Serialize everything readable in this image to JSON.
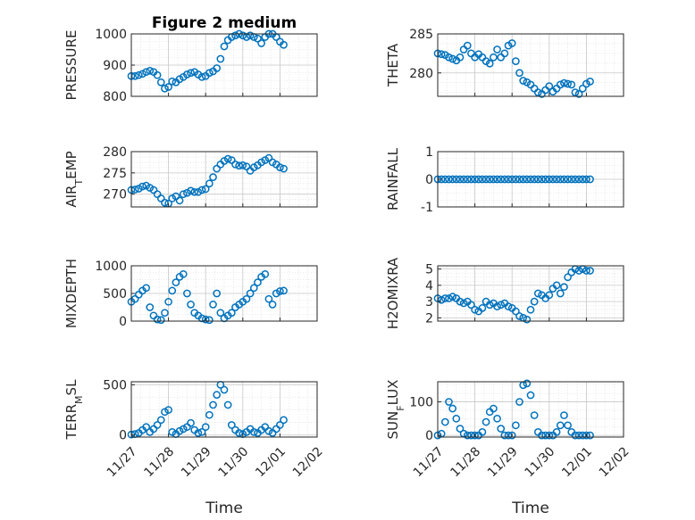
{
  "figure": {
    "title": "Figure 2 medium",
    "xlabel": "Time",
    "xticks": [
      "11/27",
      "11/28",
      "11/29",
      "11/30",
      "12/01",
      "12/02"
    ],
    "marker_color": "#0072BD"
  },
  "chart_data": [
    {
      "type": "scatter",
      "ylabel": "PRESSURE",
      "ylim": [
        800,
        1000
      ],
      "yticks": [
        "800",
        "900",
        "1000"
      ],
      "grid": true,
      "xlim": [
        0,
        5
      ],
      "x": [
        0,
        0.1,
        0.2,
        0.3,
        0.4,
        0.5,
        0.6,
        0.7,
        0.8,
        0.9,
        1.0,
        1.1,
        1.2,
        1.3,
        1.4,
        1.5,
        1.6,
        1.7,
        1.8,
        1.9,
        2.0,
        2.1,
        2.2,
        2.3,
        2.4,
        2.5,
        2.6,
        2.7,
        2.8,
        2.9,
        3.0,
        3.1,
        3.2,
        3.3,
        3.4,
        3.5,
        3.6,
        3.7,
        3.8,
        3.9,
        4.0,
        4.1
      ],
      "y": [
        865,
        865,
        868,
        872,
        878,
        882,
        878,
        868,
        845,
        825,
        830,
        848,
        845,
        855,
        862,
        870,
        875,
        878,
        870,
        862,
        865,
        875,
        880,
        890,
        920,
        960,
        980,
        990,
        995,
        1000,
        995,
        990,
        995,
        990,
        985,
        970,
        990,
        1000,
        1000,
        990,
        975,
        965
      ]
    },
    {
      "type": "scatter",
      "ylabel": "THETA",
      "ylim": [
        277,
        285
      ],
      "yticks": [
        "280",
        "285"
      ],
      "grid": true,
      "xlim": [
        0,
        5
      ],
      "x": [
        0,
        0.1,
        0.2,
        0.3,
        0.4,
        0.5,
        0.6,
        0.7,
        0.8,
        0.9,
        1.0,
        1.1,
        1.2,
        1.3,
        1.4,
        1.5,
        1.6,
        1.7,
        1.8,
        1.9,
        2.0,
        2.1,
        2.2,
        2.3,
        2.4,
        2.5,
        2.6,
        2.7,
        2.8,
        2.9,
        3.0,
        3.1,
        3.2,
        3.3,
        3.4,
        3.5,
        3.6,
        3.7,
        3.8,
        3.9,
        4.0,
        4.1
      ],
      "y": [
        282.5,
        282.4,
        282.3,
        282.0,
        281.8,
        281.6,
        282.0,
        283.0,
        283.5,
        282.5,
        282.0,
        282.4,
        282.0,
        281.5,
        281.2,
        282.0,
        283.0,
        282.0,
        282.5,
        283.5,
        283.8,
        281.5,
        280.0,
        279.0,
        278.8,
        278.5,
        278.0,
        277.5,
        277.3,
        277.8,
        278.3,
        277.6,
        278.0,
        278.5,
        278.7,
        278.6,
        278.5,
        277.5,
        277.3,
        278.0,
        278.6,
        278.9
      ]
    },
    {
      "type": "scatter",
      "ylabel": "AIR_TEMP",
      "ylim": [
        267,
        280
      ],
      "yticks": [
        "270",
        "275",
        "280"
      ],
      "grid": true,
      "xlim": [
        0,
        5
      ],
      "x": [
        0,
        0.1,
        0.2,
        0.3,
        0.4,
        0.5,
        0.6,
        0.7,
        0.8,
        0.9,
        1.0,
        1.1,
        1.2,
        1.3,
        1.4,
        1.5,
        1.6,
        1.7,
        1.8,
        1.9,
        2.0,
        2.1,
        2.2,
        2.3,
        2.4,
        2.5,
        2.6,
        2.7,
        2.8,
        2.9,
        3.0,
        3.1,
        3.2,
        3.3,
        3.4,
        3.5,
        3.6,
        3.7,
        3.8,
        3.9,
        4.0,
        4.1
      ],
      "y": [
        271.0,
        271.1,
        271.3,
        271.8,
        272.0,
        271.5,
        271.0,
        270.0,
        269.0,
        268.0,
        267.8,
        269.0,
        269.5,
        268.5,
        270.0,
        270.3,
        270.8,
        270.5,
        270.5,
        271.0,
        271.2,
        272.5,
        274.0,
        276.0,
        277.0,
        277.8,
        278.3,
        278.0,
        277.0,
        276.7,
        276.8,
        276.5,
        275.5,
        276.3,
        276.8,
        277.5,
        278.0,
        278.5,
        277.5,
        277.0,
        276.3,
        276.0
      ]
    },
    {
      "type": "scatter",
      "ylabel": "RAINFALL",
      "ylim": [
        -1,
        1
      ],
      "yticks": [
        "-1",
        "0",
        "1"
      ],
      "grid": true,
      "xlim": [
        0,
        5
      ],
      "x": [
        0,
        0.1,
        0.2,
        0.3,
        0.4,
        0.5,
        0.6,
        0.7,
        0.8,
        0.9,
        1.0,
        1.1,
        1.2,
        1.3,
        1.4,
        1.5,
        1.6,
        1.7,
        1.8,
        1.9,
        2.0,
        2.1,
        2.2,
        2.3,
        2.4,
        2.5,
        2.6,
        2.7,
        2.8,
        2.9,
        3.0,
        3.1,
        3.2,
        3.3,
        3.4,
        3.5,
        3.6,
        3.7,
        3.8,
        3.9,
        4.0,
        4.1
      ],
      "y": [
        0,
        0,
        0,
        0,
        0,
        0,
        0,
        0,
        0,
        0,
        0,
        0,
        0,
        0,
        0,
        0,
        0,
        0,
        0,
        0,
        0,
        0,
        0,
        0,
        0,
        0,
        0,
        0,
        0,
        0,
        0,
        0,
        0,
        0,
        0,
        0,
        0,
        0,
        0,
        0,
        0,
        0
      ]
    },
    {
      "type": "scatter",
      "ylabel": "MIXDEPTH",
      "ylim": [
        0,
        1000
      ],
      "yticks": [
        "0",
        "500",
        "1000"
      ],
      "grid": true,
      "xlim": [
        0,
        5
      ],
      "x": [
        0,
        0.1,
        0.2,
        0.3,
        0.4,
        0.5,
        0.6,
        0.7,
        0.8,
        0.9,
        1.0,
        1.1,
        1.2,
        1.3,
        1.4,
        1.5,
        1.6,
        1.7,
        1.8,
        1.9,
        2.0,
        2.1,
        2.2,
        2.3,
        2.4,
        2.5,
        2.6,
        2.7,
        2.8,
        2.9,
        3.0,
        3.1,
        3.2,
        3.3,
        3.4,
        3.5,
        3.6,
        3.7,
        3.8,
        3.9,
        4.0,
        4.1
      ],
      "y": [
        350,
        400,
        480,
        550,
        600,
        250,
        100,
        30,
        20,
        150,
        350,
        550,
        700,
        800,
        850,
        500,
        300,
        150,
        100,
        50,
        30,
        20,
        300,
        500,
        150,
        50,
        100,
        150,
        250,
        300,
        350,
        400,
        500,
        600,
        700,
        800,
        850,
        400,
        300,
        500,
        540,
        550
      ]
    },
    {
      "type": "scatter",
      "ylabel": "H2OMIXRA",
      "ylim": [
        2,
        5
      ],
      "yticks": [
        "2",
        "3",
        "4",
        "5"
      ],
      "grid": true,
      "xlim": [
        0,
        5
      ],
      "x": [
        0,
        0.1,
        0.2,
        0.3,
        0.4,
        0.5,
        0.6,
        0.7,
        0.8,
        0.9,
        1.0,
        1.1,
        1.2,
        1.3,
        1.4,
        1.5,
        1.6,
        1.7,
        1.8,
        1.9,
        2.0,
        2.1,
        2.2,
        2.3,
        2.4,
        2.5,
        2.6,
        2.7,
        2.8,
        2.9,
        3.0,
        3.1,
        3.2,
        3.3,
        3.4,
        3.5,
        3.6,
        3.7,
        3.8,
        3.9,
        4.0,
        4.1
      ],
      "y": [
        3.2,
        3.1,
        3.2,
        3.2,
        3.3,
        3.2,
        3.0,
        2.9,
        3.0,
        2.8,
        2.5,
        2.4,
        2.6,
        3.0,
        2.8,
        2.9,
        2.7,
        2.8,
        2.9,
        2.7,
        2.6,
        2.4,
        2.1,
        2.0,
        1.9,
        2.5,
        3.0,
        3.5,
        3.4,
        3.2,
        3.4,
        3.8,
        4.0,
        3.5,
        3.9,
        4.5,
        4.8,
        5.0,
        4.9,
        5.0,
        4.9,
        4.9
      ]
    },
    {
      "type": "scatter",
      "ylabel": "TERR_MSL",
      "ylim": [
        0,
        500
      ],
      "yticks": [
        "0",
        "500"
      ],
      "grid": true,
      "xlim": [
        0,
        5
      ],
      "x": [
        0,
        0.1,
        0.2,
        0.3,
        0.4,
        0.5,
        0.6,
        0.7,
        0.8,
        0.9,
        1.0,
        1.1,
        1.2,
        1.3,
        1.4,
        1.5,
        1.6,
        1.7,
        1.8,
        1.9,
        2.0,
        2.1,
        2.2,
        2.3,
        2.4,
        2.5,
        2.6,
        2.7,
        2.8,
        2.9,
        3.0,
        3.1,
        3.2,
        3.3,
        3.4,
        3.5,
        3.6,
        3.7,
        3.8,
        3.9,
        4.0,
        4.1
      ],
      "y": [
        5,
        10,
        20,
        50,
        80,
        30,
        60,
        100,
        150,
        230,
        250,
        30,
        10,
        40,
        60,
        80,
        120,
        50,
        20,
        30,
        80,
        200,
        300,
        400,
        500,
        450,
        300,
        100,
        50,
        20,
        10,
        30,
        60,
        30,
        20,
        50,
        80,
        40,
        20,
        60,
        100,
        150
      ]
    },
    {
      "type": "scatter",
      "ylabel": "SUN_FLUX",
      "ylim": [
        0,
        150
      ],
      "yticks": [
        "0",
        "100"
      ],
      "grid": true,
      "xlim": [
        0,
        5
      ],
      "x": [
        0,
        0.1,
        0.2,
        0.3,
        0.4,
        0.5,
        0.6,
        0.7,
        0.8,
        0.9,
        1.0,
        1.1,
        1.2,
        1.3,
        1.4,
        1.5,
        1.6,
        1.7,
        1.8,
        1.9,
        2.0,
        2.1,
        2.2,
        2.3,
        2.4,
        2.5,
        2.6,
        2.7,
        2.8,
        2.9,
        3.0,
        3.1,
        3.2,
        3.3,
        3.4,
        3.5,
        3.6,
        3.7,
        3.8,
        3.9,
        4.0,
        4.1
      ],
      "y": [
        0,
        5,
        40,
        100,
        80,
        50,
        20,
        5,
        0,
        0,
        0,
        0,
        10,
        40,
        70,
        80,
        50,
        20,
        0,
        0,
        0,
        30,
        100,
        150,
        155,
        120,
        60,
        10,
        0,
        0,
        0,
        0,
        10,
        30,
        60,
        30,
        10,
        0,
        0,
        0,
        0,
        0
      ]
    }
  ]
}
